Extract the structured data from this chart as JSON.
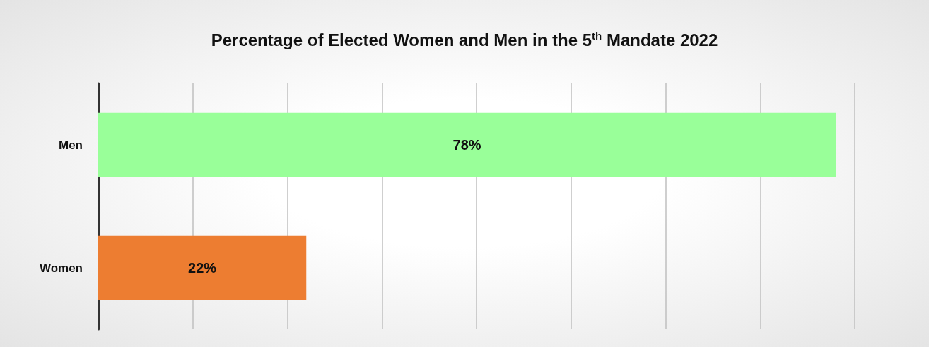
{
  "chart_data": {
    "type": "bar",
    "orientation": "horizontal",
    "title": "Percentage of Elected Women and Men in the 5$^{th}$ Mandate 2022",
    "categories": [
      "Men",
      "Women"
    ],
    "values": [
      78,
      22
    ],
    "colors": [
      "#99ff99",
      "#ed7d31"
    ],
    "value_labels": [
      "78%",
      "22%"
    ],
    "xlim": [
      0,
      80
    ],
    "xticks": [
      {
        "value": 0,
        "label": null
      },
      {
        "value": 10,
        "label": null
      },
      {
        "value": 20,
        "label": null
      },
      {
        "value": 30,
        "label": null
      },
      {
        "value": 40,
        "label": null
      },
      {
        "value": 50,
        "label": null
      },
      {
        "value": 60,
        "label": null
      },
      {
        "value": 70,
        "label": null
      },
      {
        "value": 80,
        "label": null
      }
    ],
    "grid": "x",
    "tick_labels": "y"
  }
}
